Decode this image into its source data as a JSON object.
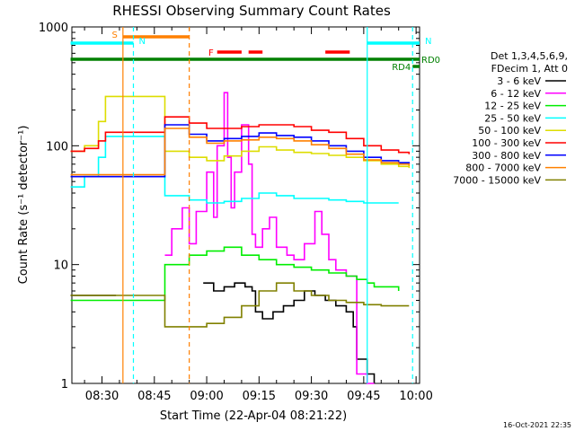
{
  "chart_data": {
    "type": "line",
    "title": "RHESSI Observing Summary Count Rates",
    "xlabel": "Start Time (22-Apr-04 08:21:22)",
    "ylabel": "Count Rate (s⁻¹ detector⁻¹)",
    "y_scale": "log",
    "ylim": [
      1,
      1000
    ],
    "xlim": [
      "08:21:22",
      "10:01:00"
    ],
    "x_ticks": [
      "08:30",
      "08:45",
      "09:00",
      "09:15",
      "09:30",
      "09:45",
      "10:00"
    ],
    "y_ticks": [
      "1",
      "10",
      "100",
      "1000"
    ],
    "legend_header": [
      "Det 1,3,4,5,6,9,",
      "FDecim 1, Att 0"
    ],
    "legend_position": "right",
    "timestamp": "16-Oct-2021 22:35",
    "series": [
      {
        "name": "3 - 6 keV",
        "color": "#000000",
        "x": [
          "08:21",
          "08:34",
          "08:48",
          "08:52",
          "08:55",
          "08:59",
          "09:02",
          "09:05",
          "09:08",
          "09:11",
          "09:13",
          "09:14",
          "09:16",
          "09:19",
          "09:22",
          "09:25",
          "09:28",
          "09:31",
          "09:34",
          "09:37",
          "09:40",
          "09:42",
          "09:43",
          "09:46",
          "09:48"
        ],
        "y": [
          5.5,
          5.5,
          null,
          null,
          null,
          7,
          6,
          6.5,
          7,
          6.5,
          6,
          4,
          3.5,
          4,
          4.5,
          5,
          6,
          5.5,
          5,
          4.5,
          4,
          3,
          1.6,
          1.2,
          1
        ]
      },
      {
        "name": "6 - 12 keV",
        "color": "#ff00ff",
        "x": [
          "08:48",
          "08:50",
          "08:53",
          "08:55",
          "08:57",
          "09:00",
          "09:02",
          "09:03",
          "09:05",
          "09:06",
          "09:07",
          "09:08",
          "09:10",
          "09:12",
          "09:13",
          "09:14",
          "09:16",
          "09:18",
          "09:20",
          "09:23",
          "09:25",
          "09:28",
          "09:31",
          "09:33",
          "09:35",
          "09:37",
          "09:40",
          "09:43",
          "09:46",
          "09:48"
        ],
        "y": [
          12,
          20,
          30,
          15,
          28,
          60,
          25,
          100,
          280,
          80,
          30,
          60,
          150,
          70,
          18,
          14,
          20,
          25,
          14,
          12,
          11,
          15,
          28,
          18,
          11,
          9,
          8,
          1.2,
          1,
          1
        ]
      },
      {
        "name": "12 - 25 keV",
        "color": "#00ee00",
        "x": [
          "08:21",
          "08:31",
          "08:48",
          "08:55",
          "09:00",
          "09:05",
          "09:10",
          "09:15",
          "09:20",
          "09:25",
          "09:30",
          "09:35",
          "09:40",
          "09:43",
          "09:46",
          "09:48",
          "09:55"
        ],
        "y": [
          5,
          5,
          10,
          12,
          13,
          14,
          12,
          11,
          10,
          9.5,
          9,
          8.5,
          8,
          7.5,
          7,
          6.5,
          6
        ]
      },
      {
        "name": "25 - 50 keV",
        "color": "#00ffff",
        "x": [
          "08:21",
          "08:25",
          "08:29",
          "08:31",
          "08:48",
          "08:55",
          "09:00",
          "09:05",
          "09:10",
          "09:15",
          "09:20",
          "09:25",
          "09:30",
          "09:35",
          "09:40",
          "09:45",
          "09:50",
          "09:55"
        ],
        "y": [
          45,
          55,
          80,
          120,
          38,
          35,
          33,
          34,
          36,
          40,
          38,
          36,
          36,
          35,
          34,
          33,
          33,
          33
        ]
      },
      {
        "name": "50 - 100 keV",
        "color": "#dddd00",
        "x": [
          "08:21",
          "08:25",
          "08:29",
          "08:31",
          "08:48",
          "08:55",
          "09:00",
          "09:05",
          "09:10",
          "09:15",
          "09:20",
          "09:25",
          "09:30",
          "09:35",
          "09:40",
          "09:45",
          "09:50",
          "09:55",
          "09:58"
        ],
        "y": [
          90,
          100,
          160,
          260,
          90,
          80,
          75,
          82,
          90,
          98,
          92,
          88,
          86,
          83,
          80,
          75,
          70,
          67,
          65
        ]
      },
      {
        "name": "100 - 300 keV",
        "color": "#ff0000",
        "x": [
          "08:21",
          "08:25",
          "08:29",
          "08:31",
          "08:48",
          "08:55",
          "09:00",
          "09:05",
          "09:10",
          "09:15",
          "09:20",
          "09:25",
          "09:30",
          "09:35",
          "09:40",
          "09:45",
          "09:50",
          "09:55",
          "09:58"
        ],
        "y": [
          90,
          95,
          110,
          130,
          175,
          155,
          140,
          140,
          145,
          150,
          150,
          145,
          135,
          130,
          115,
          100,
          92,
          88,
          85
        ]
      },
      {
        "name": "300 - 800 keV",
        "color": "#0000ff",
        "x": [
          "08:21",
          "08:31",
          "08:48",
          "08:55",
          "09:00",
          "09:05",
          "09:10",
          "09:15",
          "09:20",
          "09:25",
          "09:30",
          "09:35",
          "09:40",
          "09:45",
          "09:50",
          "09:55",
          "09:58"
        ],
        "y": [
          55,
          55,
          150,
          125,
          110,
          115,
          120,
          128,
          122,
          118,
          110,
          100,
          90,
          80,
          75,
          72,
          70
        ]
      },
      {
        "name": "800 - 7000 keV",
        "color": "#ff8000",
        "x": [
          "08:21",
          "08:31",
          "08:48",
          "08:55",
          "09:00",
          "09:05",
          "09:10",
          "09:15",
          "09:20",
          "09:25",
          "09:30",
          "09:35",
          "09:40",
          "09:45",
          "09:50",
          "09:55",
          "09:58"
        ],
        "y": [
          57,
          57,
          140,
          118,
          105,
          110,
          112,
          118,
          115,
          110,
          102,
          95,
          85,
          76,
          72,
          70,
          68
        ]
      },
      {
        "name": "7000 - 15000 keV",
        "color": "#808000",
        "x": [
          "08:21",
          "08:31",
          "08:48",
          "08:55",
          "09:00",
          "09:05",
          "09:10",
          "09:15",
          "09:20",
          "09:25",
          "09:30",
          "09:35",
          "09:40",
          "09:45",
          "09:50",
          "09:55",
          "09:58"
        ],
        "y": [
          5.5,
          5.5,
          3,
          3,
          3.2,
          3.6,
          4.5,
          6,
          7,
          6,
          5.5,
          5,
          4.8,
          4.6,
          4.5,
          4.5,
          4.5
        ]
      }
    ],
    "bars": [
      {
        "label": "S",
        "color": "#ff8000",
        "start": "08:36",
        "end": "08:55",
        "level": 0
      },
      {
        "label": "N",
        "color": "#00ffff",
        "start": "08:21",
        "end": "08:39",
        "level": 1
      },
      {
        "label": "N",
        "color": "#00ffff",
        "start": "09:46",
        "end": "10:01",
        "level": 1
      },
      {
        "label": "F",
        "color": "#ff0000",
        "start": "09:03",
        "end": "09:10",
        "level": 2
      },
      {
        "label": "",
        "color": "#ff0000",
        "start": "09:12",
        "end": "09:16",
        "level": 2
      },
      {
        "label": "",
        "color": "#ff0000",
        "start": "09:34",
        "end": "09:41",
        "level": 2
      },
      {
        "label": "RD0",
        "color": "#008000",
        "start": "08:21",
        "end": "10:01",
        "level": 3
      },
      {
        "label": "RD4",
        "color": "#008000",
        "start": "09:59",
        "end": "10:01",
        "level": 4
      }
    ],
    "vlines": [
      {
        "time": "08:36",
        "color": "#ff8000",
        "style": "solid"
      },
      {
        "time": "08:39",
        "color": "#00ffff",
        "style": "dashed"
      },
      {
        "time": "08:55",
        "color": "#ff8000",
        "style": "dashed"
      },
      {
        "time": "09:46",
        "color": "#00ffff",
        "style": "solid"
      },
      {
        "time": "09:59",
        "color": "#00ffff",
        "style": "dashed"
      }
    ]
  }
}
